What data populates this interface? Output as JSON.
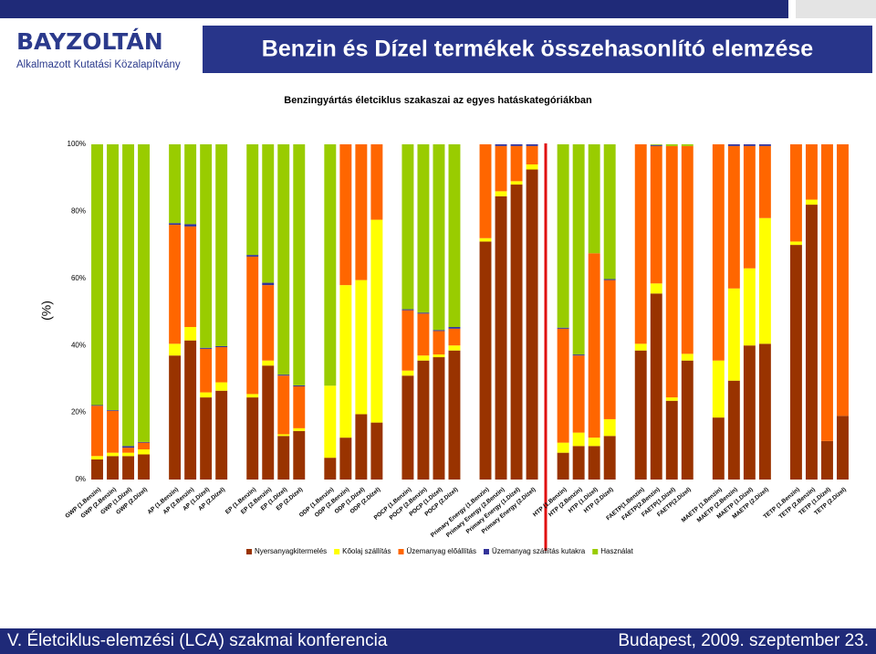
{
  "header": {
    "logo": "BAYZOLTÁN",
    "logo_subtitle": "Alkalmazott Kutatási Közalapítvány",
    "title": "Benzin és Dízel termékek összehasonlító elemzése"
  },
  "chart_data": {
    "type": "bar",
    "stacked": true,
    "title": "Benzingyártás életciklus szakaszai az egyes hatáskategóriákban",
    "y_label": "(%)",
    "categories": [
      "GWP (1.Benzin)",
      "GWP (2.Benzin)",
      "GWP (1.Dízel)",
      "GWP (2.Dízel)",
      null,
      "AP (1.Benzin)",
      "AP (2.Benzin)",
      "AP (1.Dízel)",
      "AP (2.Dízel)",
      null,
      "EP (1.Benzin)",
      "EP (2.Benzin)",
      "EP (1.Dízel)",
      "EP (2.Dízel)",
      null,
      "ODP (1.Benzin)",
      "ODP (2.Benzin)",
      "ODP (1.Dízel)",
      "ODP (2.Dízel)",
      null,
      "POCP (1.Benzin)",
      "POCP (2.Benzin)",
      "POCP (1.Dízel)",
      "POCP (2.Dízel)",
      null,
      "Primary Energy (1.Benzin)",
      "Primary Energy (2.Benzin)",
      "Primary Energy (1.Dízel)",
      "Primary Energy (2.Dízel)",
      null,
      "HTP (1.Benzin)",
      "HTP (2.Benzin)",
      "HTP (1.Dízel)",
      "HTP (2.Dízel)",
      null,
      "FAETP(1.Benzin)",
      "FAETP(2.Benzin)",
      "FAETP(1.Dízel)",
      "FAETP(2.Dízel)",
      null,
      "MAETP (1.Benzin)",
      "MAETP (2.Benzin)",
      "MAETP (1.Dízel)",
      "MAETP (2.Dízel)",
      null,
      "TETP (1.Benzin)",
      "TETP (2.Benzin)",
      "TETP (1.Dízel)",
      "TETP (2.Dízel)"
    ],
    "series": [
      {
        "name": "Nyersanyagkitermelés",
        "color": "#993300",
        "values": [
          6,
          7,
          7,
          7.5,
          null,
          37,
          41.5,
          24.5,
          26.5,
          null,
          24.5,
          34,
          13,
          14.5,
          null,
          6.5,
          12.5,
          19.5,
          17,
          null,
          31,
          35.5,
          36.5,
          38.5,
          null,
          71,
          84.5,
          88,
          92.5,
          null,
          8,
          10,
          10,
          13,
          null,
          38.5,
          55.5,
          23.5,
          35.5,
          null,
          18.5,
          29.5,
          40,
          40.5,
          null,
          70,
          82,
          11.5,
          19
        ]
      },
      {
        "name": "Kőolaj szállítás",
        "color": "#ffff00",
        "values": [
          1,
          1,
          1,
          1.5,
          null,
          3.5,
          4,
          1.5,
          2.5,
          null,
          1,
          1.5,
          0.5,
          0.8,
          null,
          21.5,
          45.5,
          40,
          60.5,
          null,
          1.5,
          1.5,
          0.8,
          1.5,
          null,
          1,
          1.5,
          1,
          1.5,
          null,
          3,
          4,
          2.5,
          5,
          null,
          2,
          3,
          1,
          2,
          null,
          17,
          27.5,
          23,
          37.5,
          null,
          1,
          1.5,
          0,
          0
        ]
      },
      {
        "name": "Üzemanyag előállítás",
        "color": "#ff6600",
        "values": [
          15,
          12.5,
          1.5,
          2,
          null,
          35.5,
          30,
          13,
          10.5,
          null,
          41,
          22.5,
          17.5,
          12.5,
          null,
          0,
          42,
          40.5,
          22.5,
          null,
          18,
          12.5,
          7,
          5,
          null,
          28,
          13.5,
          10.5,
          5.5,
          null,
          34,
          23,
          55,
          41.5,
          null,
          59.5,
          41,
          75,
          62,
          null,
          64.5,
          42.5,
          36.5,
          21.5,
          null,
          29,
          16.5,
          88.5,
          81
        ]
      },
      {
        "name": "Üzemanyag szállítás kutakra",
        "color": "#333399",
        "values": [
          0.2,
          0.2,
          0.5,
          0.2,
          null,
          0.5,
          0.7,
          0.3,
          0.3,
          null,
          0.5,
          0.7,
          0.3,
          0.3,
          null,
          0,
          0,
          0,
          0,
          null,
          0.3,
          0.3,
          0.3,
          0.5,
          null,
          0,
          0.5,
          0.5,
          0.5,
          null,
          0.3,
          0.3,
          0,
          0.3,
          null,
          0,
          0.3,
          0,
          0,
          null,
          0,
          0.5,
          0.5,
          0.5,
          null,
          0,
          0,
          0,
          0
        ]
      },
      {
        "name": "Használat",
        "color": "#99cc00",
        "values": [
          77.8,
          79.3,
          90,
          88.8,
          null,
          23.5,
          23.8,
          60.7,
          60.2,
          null,
          33,
          41.3,
          68.7,
          71.9,
          null,
          72,
          0,
          0,
          0,
          null,
          49.2,
          50.2,
          55.4,
          54.5,
          null,
          0,
          0,
          0,
          0,
          null,
          54.7,
          62.7,
          32.5,
          40.2,
          null,
          0,
          0.2,
          0.5,
          0.5,
          null,
          0,
          0,
          0,
          0,
          null,
          0,
          0,
          0,
          0
        ]
      }
    ],
    "ylim": [
      0,
      100
    ],
    "yticks": [
      {
        "value": 0,
        "label": "0%"
      },
      {
        "value": 20,
        "label": "20%"
      },
      {
        "value": 40,
        "label": "40%"
      },
      {
        "value": 60,
        "label": "60%"
      },
      {
        "value": 80,
        "label": "80%"
      },
      {
        "value": 100,
        "label": "100%"
      }
    ],
    "grid": false,
    "legend": "bottom"
  },
  "footer": {
    "left": "V. Életciklus-elemzési (LCA) szakmai konferencia",
    "right": "Budapest, 2009. szeptember 23."
  }
}
